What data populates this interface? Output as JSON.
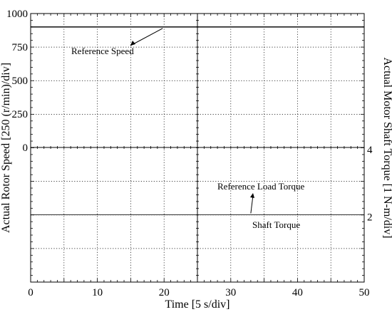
{
  "chart_data": {
    "type": "line",
    "title": "",
    "xlabel": "Time [5 s/div]",
    "ylabel_left": "Actual Rotor Speed [250 (r/min)/div]",
    "ylabel_right": "Actual Motor Shaft Torque [1 N-m/div]",
    "xlim": [
      0,
      50
    ],
    "x_ticks": [
      0,
      10,
      20,
      30,
      40,
      50
    ],
    "x_tick_labels": [
      "0",
      "10",
      "20",
      "30",
      "40",
      "50"
    ],
    "speed_ylim": [
      0,
      1000
    ],
    "speed_ticks": [
      0,
      250,
      500,
      750,
      1000
    ],
    "speed_tick_labels": [
      "0",
      "250",
      "500",
      "750",
      "1000"
    ],
    "torque_ylim": [
      0,
      4
    ],
    "torque_ticks": [
      2,
      4
    ],
    "torque_tick_labels": [
      "2",
      "4"
    ],
    "grid": true,
    "series": [
      {
        "name": "Reference Speed",
        "axis": "speed",
        "x": [
          0,
          50
        ],
        "y": [
          900,
          900
        ]
      },
      {
        "name": "Shaft Torque",
        "axis": "torque",
        "x": [
          0,
          50
        ],
        "y": [
          2,
          2
        ]
      }
    ],
    "annotations": [
      {
        "text": "Reference Speed",
        "axis": "speed",
        "x": 20,
        "y": 900
      },
      {
        "text": "Reference Load Torque",
        "axis": "torque",
        "x": 33,
        "y": 2
      },
      {
        "text": "Shaft Torque",
        "axis": "torque",
        "x": 37,
        "y": 2
      }
    ]
  }
}
